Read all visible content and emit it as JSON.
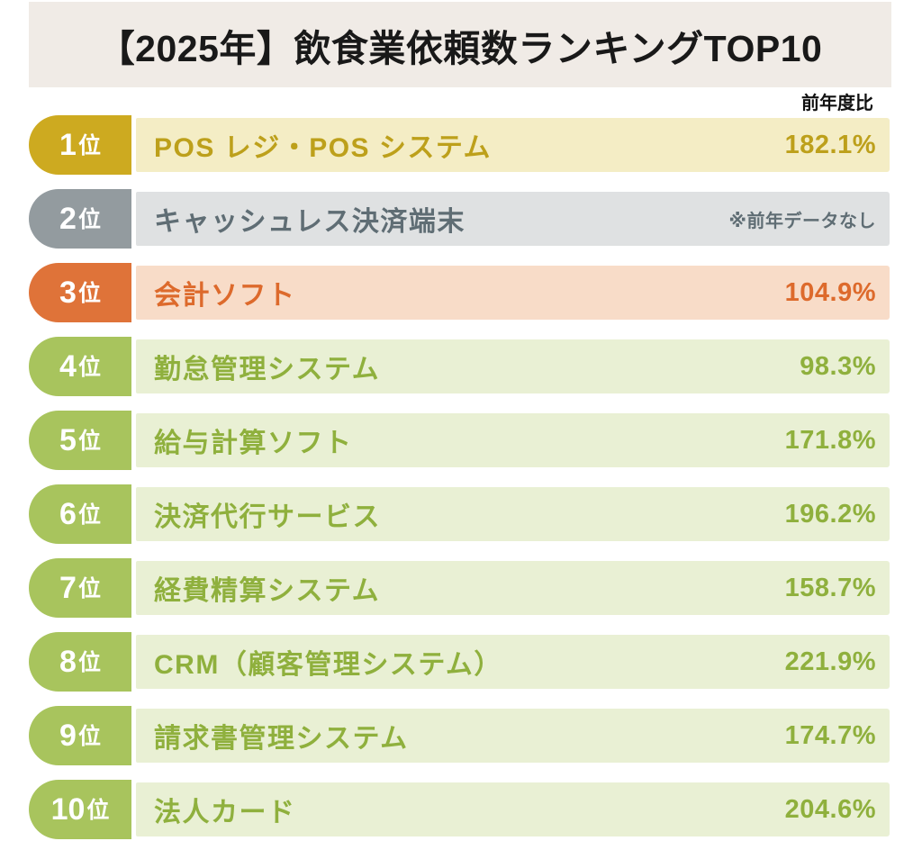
{
  "header": {
    "title": "【2025年】飲食業依頼数ランキングTOP10",
    "value_column_label": "前年度比"
  },
  "colors": {
    "page_bg": "#ffffff",
    "banner_bg": "#f0ebe6",
    "banner_text": "#191919",
    "column_label_text": "#111111",
    "themes": {
      "gold": {
        "badge": "#cdaa20",
        "bar": "#f4edc5",
        "text": "#bda01b"
      },
      "gray": {
        "badge": "#939b9f",
        "bar": "#dfe1e2",
        "text": "#5f6d74"
      },
      "orange": {
        "badge": "#df7339",
        "bar": "#f8dcc8",
        "text": "#dd6a2c"
      },
      "green": {
        "badge": "#a8c45d",
        "bar": "#e9f0d4",
        "text": "#8fb03d"
      }
    }
  },
  "chart_data": {
    "type": "table",
    "title": "【2025年】飲食業依頼数ランキングTOP10",
    "value_column": "前年度比",
    "rows": [
      {
        "rank_number": "1",
        "rank_suffix": "位",
        "label": "POS レジ・POS システム",
        "value": "182.1%",
        "theme": "gold",
        "is_note": false
      },
      {
        "rank_number": "2",
        "rank_suffix": "位",
        "label": "キャッシュレス決済端末",
        "value": "※前年データなし",
        "theme": "gray",
        "is_note": true
      },
      {
        "rank_number": "3",
        "rank_suffix": "位",
        "label": "会計ソフト",
        "value": "104.9%",
        "theme": "orange",
        "is_note": false
      },
      {
        "rank_number": "4",
        "rank_suffix": "位",
        "label": "勤怠管理システム",
        "value": "98.3%",
        "theme": "green",
        "is_note": false
      },
      {
        "rank_number": "5",
        "rank_suffix": "位",
        "label": "給与計算ソフト",
        "value": "171.8%",
        "theme": "green",
        "is_note": false
      },
      {
        "rank_number": "6",
        "rank_suffix": "位",
        "label": "決済代行サービス",
        "value": "196.2%",
        "theme": "green",
        "is_note": false
      },
      {
        "rank_number": "7",
        "rank_suffix": "位",
        "label": "経費精算システム",
        "value": "158.7%",
        "theme": "green",
        "is_note": false
      },
      {
        "rank_number": "8",
        "rank_suffix": "位",
        "label": "CRM（顧客管理システム）",
        "value": "221.9%",
        "theme": "green",
        "is_note": false
      },
      {
        "rank_number": "9",
        "rank_suffix": "位",
        "label": "請求書管理システム",
        "value": "174.7%",
        "theme": "green",
        "is_note": false
      },
      {
        "rank_number": "10",
        "rank_suffix": "位",
        "label": "法人カード",
        "value": "204.6%",
        "theme": "green",
        "is_note": false
      }
    ]
  }
}
